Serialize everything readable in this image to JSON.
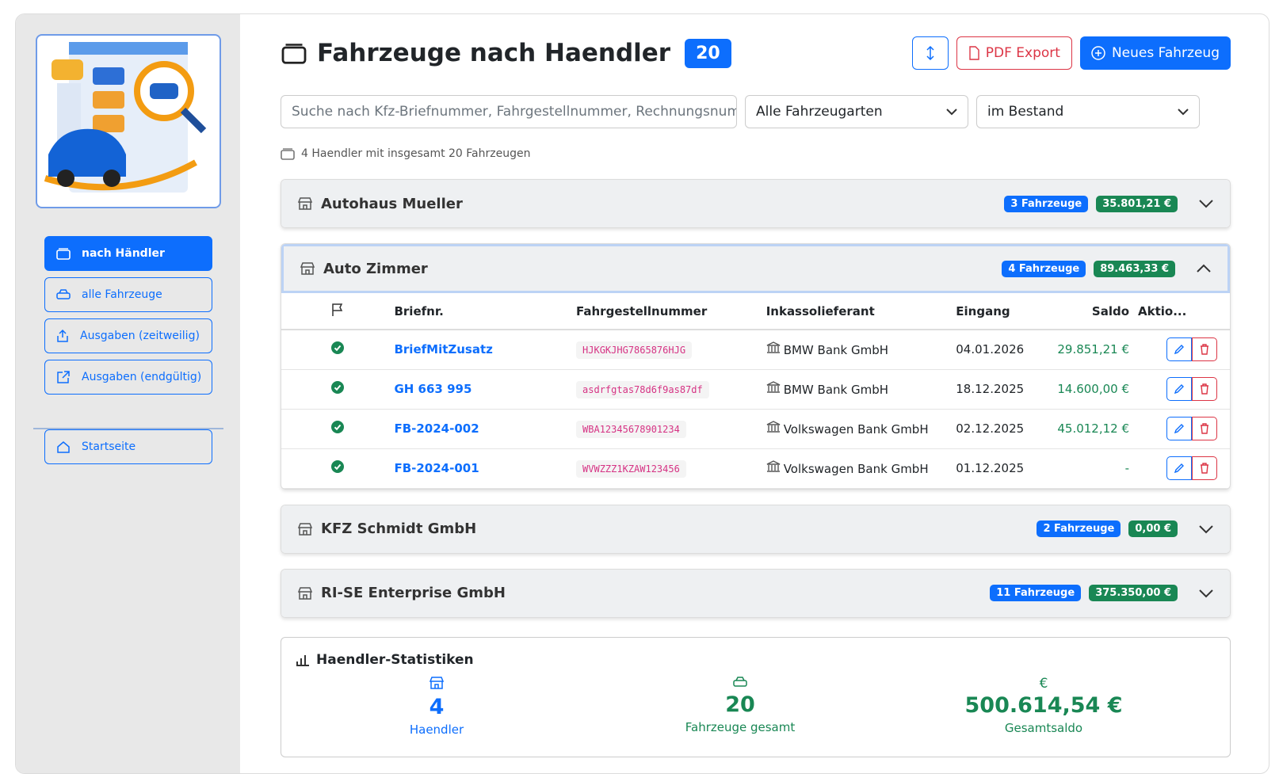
{
  "sidebar": {
    "nav": [
      "nach Händler",
      "alle Fahrzeuge",
      "Ausgaben (zeitweilig)",
      "Ausgaben (endgültig)"
    ],
    "home": "Startseite"
  },
  "header": {
    "title": "Fahrzeuge nach Haendler",
    "count": "20",
    "buttons": {
      "pdf": "PDF Export",
      "new": "Neues Fahrzeug"
    }
  },
  "filters": {
    "search_placeholder": "Suche nach Kfz-Briefnummer, Fahrgestellnummer, Rechnungsnummer,",
    "type": "Alle Fahrzeugarten",
    "status": "im Bestand"
  },
  "summary": "4 Haendler mit insgesamt 20 Fahrzeugen",
  "dealers": [
    {
      "name": "Autohaus Mueller",
      "vehicles": "3 Fahrzeuge",
      "saldo": "35.801,21 €",
      "expanded": false
    },
    {
      "name": "Auto Zimmer",
      "vehicles": "4 Fahrzeuge",
      "saldo": "89.463,33 €",
      "expanded": true,
      "table": {
        "columns": [
          "Briefnr.",
          "Fahrgestellnummer",
          "Inkassolieferant",
          "Eingang",
          "Saldo",
          "Aktio..."
        ],
        "rows": [
          [
            "BriefMitZusatz",
            "HJKGKJHG7865876HJG",
            "BMW Bank GmbH",
            "04.01.2026",
            "29.851,21 €"
          ],
          [
            "GH 663 995",
            "asdrfgtas78d6f9as87df",
            "BMW Bank GmbH",
            "18.12.2025",
            "14.600,00 €"
          ],
          [
            "FB-2024-002",
            "WBA12345678901234",
            "Volkswagen Bank GmbH",
            "02.12.2025",
            "45.012,12 €"
          ],
          [
            "FB-2024-001",
            "WVWZZZ1KZAW123456",
            "Volkswagen Bank GmbH",
            "01.12.2025",
            "-"
          ]
        ]
      }
    },
    {
      "name": "KFZ Schmidt GmbH",
      "vehicles": "2 Fahrzeuge",
      "saldo": "0,00 €",
      "expanded": false
    },
    {
      "name": "RI-SE Enterprise GmbH",
      "vehicles": "11 Fahrzeuge",
      "saldo": "375.350,00 €",
      "expanded": false
    }
  ],
  "stats": {
    "title": "Haendler-Statistiken",
    "items": [
      {
        "value": "4",
        "label": "Haendler"
      },
      {
        "value": "20",
        "label": "Fahrzeuge gesamt"
      },
      {
        "symbol": "€",
        "value": "500.614,54 €",
        "label": "Gesamtsaldo"
      }
    ]
  }
}
